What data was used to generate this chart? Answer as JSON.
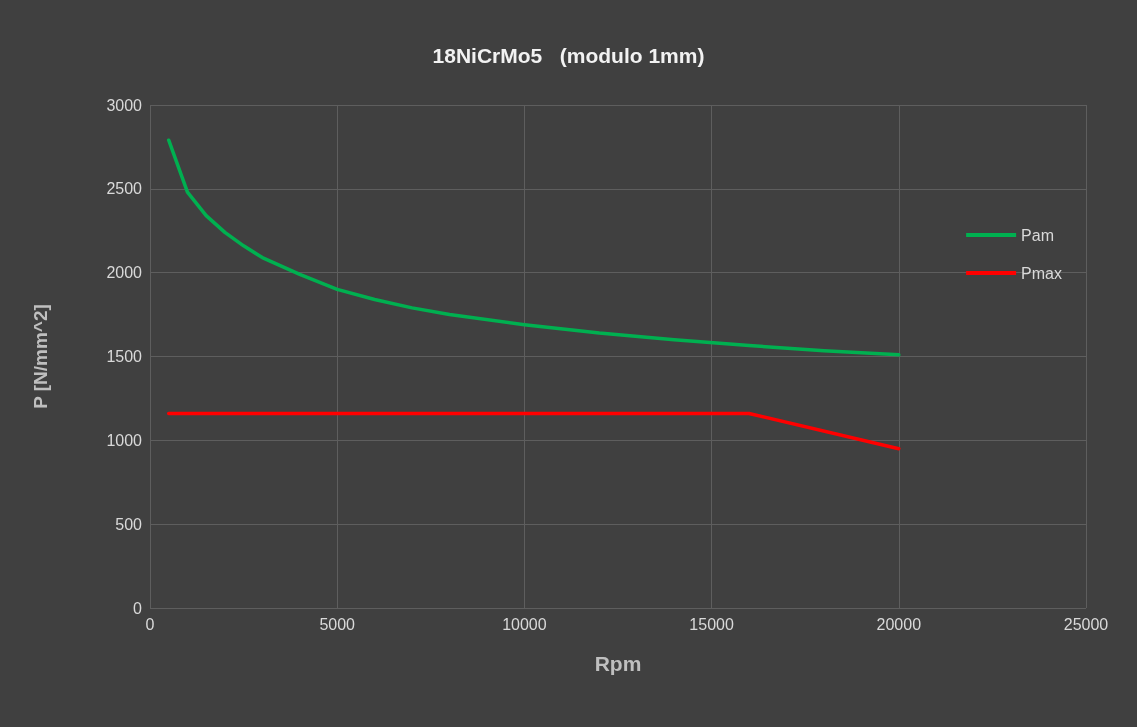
{
  "chart_data": {
    "type": "line",
    "title": "18NiCrMo5   (modulo 1mm)",
    "xlabel": "Rpm",
    "ylabel": "P [N/mm^2]",
    "x": [
      500,
      1000,
      1500,
      2000,
      2500,
      3000,
      4000,
      5000,
      6000,
      7000,
      8000,
      10000,
      12000,
      14000,
      16000,
      18000,
      20000
    ],
    "series": [
      {
        "name": "Pam",
        "color": "#00b050",
        "values": [
          2790,
          2480,
          2340,
          2240,
          2160,
          2090,
          1990,
          1900,
          1840,
          1790,
          1750,
          1690,
          1640,
          1600,
          1565,
          1535,
          1510
        ]
      },
      {
        "name": "Pmax",
        "color": "#ff0000",
        "x": [
          500,
          16000,
          20000
        ],
        "values": [
          1160,
          1160,
          950
        ]
      }
    ],
    "xlim": [
      0,
      25000
    ],
    "xticks": [
      0,
      5000,
      10000,
      15000,
      20000,
      25000
    ],
    "ylim": [
      0,
      3000
    ],
    "yticks": [
      0,
      500,
      1000,
      1500,
      2000,
      2500,
      3000
    ],
    "grid": true,
    "legend": "right",
    "marker": "none",
    "line_style": "solid"
  }
}
